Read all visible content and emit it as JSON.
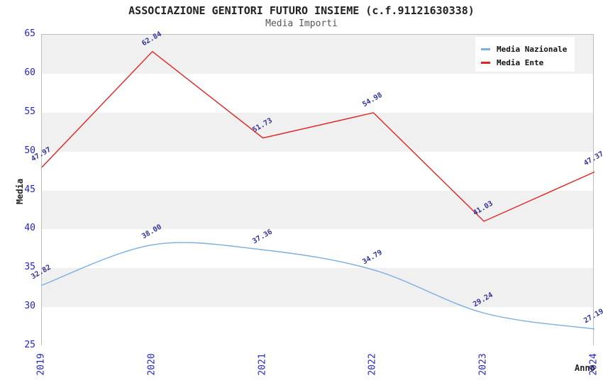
{
  "chart_data": {
    "type": "line",
    "title": "ASSOCIAZIONE GENITORI FUTURO INSIEME (c.f.91121630338)",
    "subtitle": "Media Importi",
    "xlabel": "Anno",
    "ylabel": "Media",
    "categories": [
      "2019",
      "2020",
      "2021",
      "2022",
      "2023",
      "2024"
    ],
    "series": [
      {
        "name": "Media Nazionale",
        "color": "#7aade2",
        "smooth": true,
        "values": [
          32.82,
          38.0,
          37.36,
          34.79,
          29.24,
          27.19
        ]
      },
      {
        "name": "Media Ente",
        "color": "#e32222",
        "smooth": false,
        "values": [
          47.97,
          62.84,
          51.73,
          54.98,
          41.03,
          47.37
        ]
      }
    ],
    "ylim": [
      25,
      65
    ],
    "y_ticks": [
      25,
      30,
      35,
      40,
      45,
      50,
      55,
      60,
      65
    ],
    "grid": "alternating-horizontal-bands",
    "legend_position": "top-right",
    "colors": {
      "tick_label": "#2323cd",
      "point_label": "#333399",
      "band_gray": "#f0f0f0",
      "band_white": "#ffffff",
      "plot_border": "#bcbcbc",
      "legend_bg": "#ffffff",
      "title": "#222222",
      "subtitle": "#555555"
    }
  }
}
